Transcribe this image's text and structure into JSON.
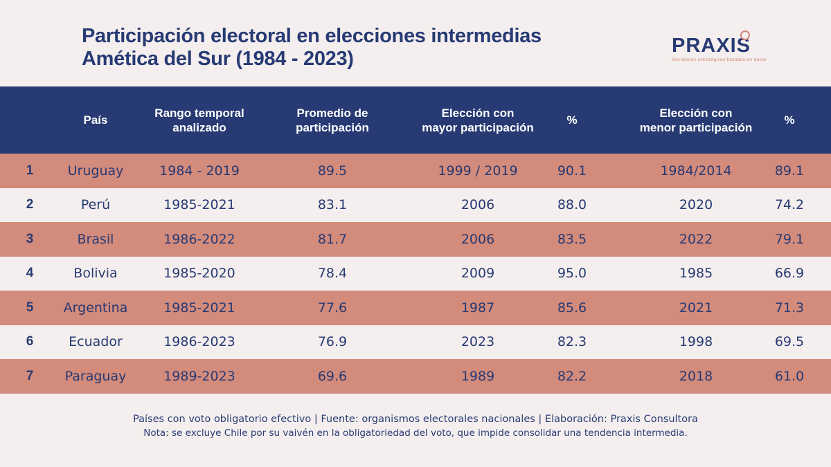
{
  "title": {
    "line1": "Participación electoral en elecciones intermedias",
    "line2": "Amética del Sur (1984 - 2023)"
  },
  "logo": {
    "word": "PRAXIS",
    "tagline": "Decisiones estratégicas basadas en datos"
  },
  "colors": {
    "header_bg": "#273a74",
    "row_highlight": "#d38b7b",
    "row_plain": "#f4efee",
    "text": "#273a74"
  },
  "chart_data": {
    "type": "table",
    "columns": [
      "",
      "País",
      "Rango temporal\nanalizado",
      "Promedio de\nparticipación",
      "Elección con\nmayor participación",
      "%",
      "Elección con\nmenor participación",
      "%"
    ],
    "rows": [
      [
        "1",
        "Uruguay",
        "1984 - 2019",
        "89.5",
        "1999 / 2019",
        "90.1",
        "1984/2014",
        "89.1"
      ],
      [
        "2",
        "Perú",
        "1985-2021",
        "83.1",
        "2006",
        "88.0",
        "2020",
        "74.2"
      ],
      [
        "3",
        "Brasil",
        "1986-2022",
        "81.7",
        "2006",
        "83.5",
        "2022",
        "79.1"
      ],
      [
        "4",
        "Bolivia",
        "1985-2020",
        "78.4",
        "2009",
        "95.0",
        "1985",
        "66.9"
      ],
      [
        "5",
        "Argentina",
        "1985-2021",
        "77.6",
        "1987",
        "85.6",
        "2021",
        "71.3"
      ],
      [
        "6",
        "Ecuador",
        "1986-2023",
        "76.9",
        "2023",
        "82.3",
        "1998",
        "69.5"
      ],
      [
        "7",
        "Paraguay",
        "1989-2023",
        "69.6",
        "1989",
        "82.2",
        "2018",
        "61.0"
      ]
    ]
  },
  "footer": {
    "line1": "Países con voto obligatorio efectivo | Fuente: organismos electorales nacionales | Elaboración: Praxis Consultora",
    "line2": "Nota: se excluye Chile por su vaivén en la obligatoriedad del voto, que impide consolidar una tendencia intermedia."
  }
}
